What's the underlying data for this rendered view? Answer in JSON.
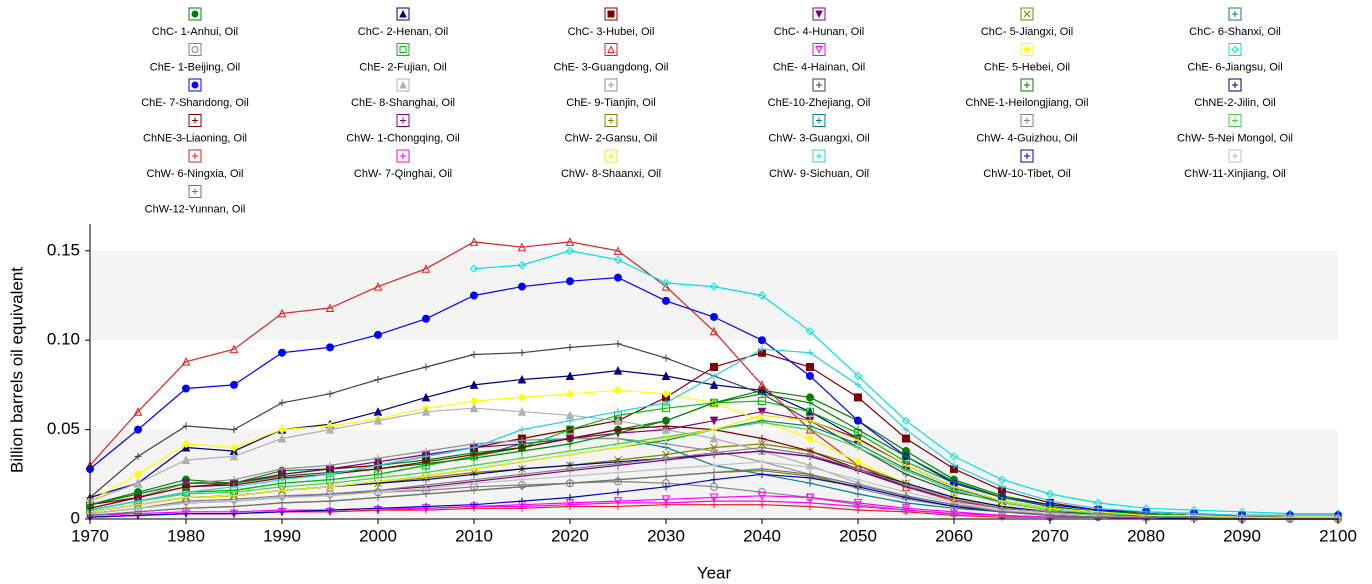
{
  "chart_data": {
    "type": "line",
    "x_label": "Year",
    "y_label": "Billion barrels oil equivalent",
    "x": [
      1970,
      1975,
      1980,
      1985,
      1990,
      1995,
      2000,
      2005,
      2010,
      2015,
      2020,
      2025,
      2030,
      2035,
      2040,
      2045,
      2050,
      2055,
      2060,
      2065,
      2070,
      2075,
      2080,
      2085,
      2090,
      2095,
      2100
    ],
    "xlim": [
      1970,
      2100
    ],
    "xticks": [
      1970,
      1980,
      1990,
      2000,
      2010,
      2020,
      2030,
      2040,
      2050,
      2060,
      2070,
      2080,
      2090,
      2100
    ],
    "ylim": [
      0,
      0.165
    ],
    "yticks": [
      0,
      0.05,
      {
        "value": 0.1,
        "label": "0.10"
      },
      0.15
    ],
    "grid": "bands",
    "series": [
      {
        "name": "ChC- 1-Anhui, Oil",
        "color": "#008000",
        "marker": "circle-filled",
        "values": [
          0.008,
          0.015,
          0.022,
          0.02,
          0.027,
          0.028,
          0.03,
          0.033,
          0.037,
          0.04,
          0.045,
          0.05,
          0.055,
          0.065,
          0.072,
          0.068,
          0.055,
          0.038,
          0.022,
          0.013,
          0.008,
          0.005,
          0.003,
          0.002,
          0.001,
          0.001,
          0.001
        ]
      },
      {
        "name": "ChC- 2-Henan, Oil",
        "color": "#000080",
        "marker": "triangle-filled",
        "values": [
          0.012,
          0.02,
          0.04,
          0.038,
          0.05,
          0.053,
          0.06,
          0.068,
          0.075,
          0.078,
          0.08,
          0.083,
          0.08,
          0.075,
          0.072,
          0.06,
          0.045,
          0.03,
          0.018,
          0.01,
          0.006,
          0.004,
          0.003,
          0.002,
          0.001,
          0.001,
          0.001
        ]
      },
      {
        "name": "ChC- 3-Hubei, Oil",
        "color": "#800000",
        "marker": "square-filled",
        "values": [
          0.008,
          0.012,
          0.018,
          0.02,
          0.025,
          0.028,
          0.03,
          0.035,
          0.04,
          0.045,
          0.05,
          0.055,
          0.068,
          0.085,
          0.093,
          0.085,
          0.068,
          0.045,
          0.028,
          0.016,
          0.009,
          0.005,
          0.003,
          0.002,
          0.002,
          0.001,
          0.001
        ]
      },
      {
        "name": "ChC- 4-Hunan, Oil",
        "color": "#800080",
        "marker": "invtriangle-filled",
        "values": [
          0.006,
          0.012,
          0.02,
          0.02,
          0.025,
          0.028,
          0.032,
          0.036,
          0.04,
          0.042,
          0.045,
          0.048,
          0.05,
          0.055,
          0.06,
          0.055,
          0.045,
          0.03,
          0.018,
          0.01,
          0.006,
          0.004,
          0.002,
          0.002,
          0.001,
          0.001,
          0.001
        ]
      },
      {
        "name": "ChC- 5-Jiangxi, Oil",
        "color": "#808000",
        "marker": "cross",
        "values": [
          0.004,
          0.008,
          0.012,
          0.013,
          0.016,
          0.018,
          0.02,
          0.023,
          0.026,
          0.028,
          0.03,
          0.033,
          0.036,
          0.04,
          0.042,
          0.038,
          0.03,
          0.02,
          0.012,
          0.007,
          0.004,
          0.003,
          0.002,
          0.001,
          0.001,
          0.001,
          0.001
        ]
      },
      {
        "name": "ChC- 6-Shanxi, Oil",
        "color": "#008080",
        "marker": "plus",
        "values": [
          0.005,
          0.01,
          0.015,
          0.016,
          0.02,
          0.022,
          0.025,
          0.03,
          0.035,
          0.042,
          0.045,
          0.045,
          0.04,
          0.03,
          0.025,
          0.02,
          0.014,
          0.009,
          0.006,
          0.004,
          0.003,
          0.002,
          0.001,
          0.001,
          0.001,
          0.001,
          0.001
        ]
      },
      {
        "name": "ChE- 1-Beijing, Oil",
        "color": "#808080",
        "marker": "circle-open",
        "values": [
          0.003,
          0.006,
          0.01,
          0.011,
          0.013,
          0.014,
          0.015,
          0.016,
          0.018,
          0.019,
          0.02,
          0.021,
          0.02,
          0.018,
          0.015,
          0.012,
          0.008,
          0.005,
          0.003,
          0.002,
          0.001,
          0.001,
          0.001,
          0.001,
          0,
          0,
          0
        ]
      },
      {
        "name": "ChE- 2-Fujian, Oil",
        "color": "#00c000",
        "marker": "square-open",
        "values": [
          0.005,
          0.01,
          0.015,
          0.016,
          0.02,
          0.022,
          0.025,
          0.03,
          0.035,
          0.04,
          0.05,
          0.058,
          0.062,
          0.065,
          0.066,
          0.06,
          0.048,
          0.032,
          0.02,
          0.012,
          0.007,
          0.004,
          0.003,
          0.002,
          0.001,
          0.001,
          0.001
        ]
      },
      {
        "name": "ChE- 3-Guangdong, Oil",
        "color": "#e02020",
        "marker": "triangle-open",
        "values": [
          0.03,
          0.06,
          0.088,
          0.095,
          0.115,
          0.118,
          0.13,
          0.14,
          0.155,
          0.152,
          0.155,
          0.15,
          0.13,
          0.105,
          0.075,
          0.05,
          0.03,
          0.018,
          0.01,
          0.006,
          0.004,
          0.003,
          0.002,
          0.002,
          0.001,
          0.001,
          0.001
        ]
      },
      {
        "name": "ChE- 4-Hainan, Oil",
        "color": "#ff00ff",
        "marker": "invtriangle-open",
        "values": [
          0.001,
          0.002,
          0.003,
          0.003,
          0.004,
          0.004,
          0.005,
          0.006,
          0.007,
          0.008,
          0.009,
          0.01,
          0.011,
          0.012,
          0.013,
          0.012,
          0.009,
          0.006,
          0.004,
          0.002,
          0.001,
          0.001,
          0.001,
          0,
          0,
          0,
          0
        ]
      },
      {
        "name": "ChE- 5-Hebei, Oil",
        "color": "#ffff00",
        "marker": "diamond-filled",
        "values": [
          0.01,
          0.025,
          0.042,
          0.04,
          0.05,
          0.052,
          0.056,
          0.062,
          0.066,
          0.068,
          0.07,
          0.072,
          0.07,
          0.065,
          0.055,
          0.045,
          0.032,
          0.02,
          0.012,
          0.007,
          0.004,
          0.003,
          0.002,
          0.001,
          0.001,
          0.001,
          0.001
        ]
      },
      {
        "name": "ChE- 6-Jiangsu, Oil",
        "color": "#00e0e0",
        "marker": "diamond-open",
        "values": [
          null,
          null,
          null,
          null,
          null,
          null,
          null,
          null,
          0.14,
          0.142,
          0.15,
          0.145,
          0.132,
          0.13,
          0.125,
          0.105,
          0.08,
          0.055,
          0.035,
          0.022,
          0.014,
          0.009,
          0.006,
          0.005,
          0.004,
          0.003,
          0.003
        ]
      },
      {
        "name": "ChE- 7-Shandong, Oil",
        "color": "#0000ff",
        "marker": "circle-filled",
        "values": [
          0.028,
          0.05,
          0.073,
          0.075,
          0.093,
          0.096,
          0.103,
          0.112,
          0.125,
          0.13,
          0.133,
          0.135,
          0.122,
          0.113,
          0.1,
          0.08,
          0.055,
          0.035,
          0.02,
          0.012,
          0.008,
          0.005,
          0.004,
          0.003,
          0.002,
          0.002,
          0.002
        ]
      },
      {
        "name": "ChE- 8-Shanghai, Oil",
        "color": "#b0b0b0",
        "marker": "triangle-filled",
        "values": [
          0.01,
          0.02,
          0.033,
          0.035,
          0.045,
          0.05,
          0.055,
          0.06,
          0.062,
          0.06,
          0.058,
          0.055,
          0.05,
          0.045,
          0.038,
          0.03,
          0.02,
          0.013,
          0.008,
          0.005,
          0.003,
          0.002,
          0.001,
          0.001,
          0.001,
          0.001,
          0.001
        ]
      },
      {
        "name": "ChE- 9-Tianjin, Oil",
        "color": "#909090",
        "marker": "plus",
        "values": [
          0.006,
          0.012,
          0.02,
          0.022,
          0.028,
          0.03,
          0.034,
          0.038,
          0.042,
          0.044,
          0.045,
          0.045,
          0.042,
          0.038,
          0.032,
          0.025,
          0.017,
          0.011,
          0.007,
          0.004,
          0.003,
          0.002,
          0.001,
          0.001,
          0.001,
          0,
          0
        ]
      },
      {
        "name": "ChE-10-Zhejiang, Oil",
        "color": "#404040",
        "marker": "plus",
        "values": [
          0.012,
          0.035,
          0.052,
          0.05,
          0.065,
          0.07,
          0.078,
          0.085,
          0.092,
          0.093,
          0.096,
          0.098,
          0.09,
          0.08,
          0.07,
          0.055,
          0.04,
          0.025,
          0.015,
          0.01,
          0.006,
          0.004,
          0.003,
          0.002,
          0.002,
          0.001,
          0.001
        ]
      },
      {
        "name": "ChNE-1-Heilongjiang, Oil",
        "color": "#008000",
        "marker": "plus",
        "values": [
          0.008,
          0.014,
          0.02,
          0.02,
          0.024,
          0.026,
          0.028,
          0.031,
          0.034,
          0.038,
          0.042,
          0.048,
          0.055,
          0.065,
          0.07,
          0.065,
          0.05,
          0.035,
          0.021,
          0.012,
          0.007,
          0.004,
          0.003,
          0.002,
          0.001,
          0.001,
          0.001
        ]
      },
      {
        "name": "ChNE-2-Jilin, Oil",
        "color": "#000080",
        "marker": "plus",
        "values": [
          0.004,
          0.008,
          0.012,
          0.013,
          0.016,
          0.018,
          0.02,
          0.022,
          0.025,
          0.028,
          0.03,
          0.032,
          0.034,
          0.036,
          0.038,
          0.035,
          0.028,
          0.02,
          0.012,
          0.007,
          0.004,
          0.003,
          0.002,
          0.001,
          0.001,
          0.001,
          0.001
        ]
      },
      {
        "name": "ChNE-3-Liaoning, Oil",
        "color": "#800000",
        "marker": "plus",
        "values": [
          0.006,
          0.012,
          0.018,
          0.019,
          0.023,
          0.025,
          0.028,
          0.032,
          0.036,
          0.04,
          0.045,
          0.05,
          0.052,
          0.05,
          0.045,
          0.038,
          0.028,
          0.018,
          0.011,
          0.006,
          0.004,
          0.002,
          0.002,
          0.001,
          0.001,
          0.001,
          0.001
        ]
      },
      {
        "name": "ChW- 1-Chongqing, Oil",
        "color": "#800080",
        "marker": "plus",
        "values": [
          0.003,
          0.006,
          0.009,
          0.01,
          0.012,
          0.014,
          0.016,
          0.018,
          0.021,
          0.024,
          0.027,
          0.03,
          0.033,
          0.036,
          0.038,
          0.035,
          0.027,
          0.018,
          0.011,
          0.006,
          0.004,
          0.002,
          0.001,
          0.001,
          0.001,
          0,
          0
        ]
      },
      {
        "name": "ChW- 2-Gansu, Oil",
        "color": "#808000",
        "marker": "plus",
        "values": [
          0.002,
          0.004,
          0.006,
          0.007,
          0.009,
          0.01,
          0.012,
          0.014,
          0.016,
          0.018,
          0.02,
          0.022,
          0.024,
          0.026,
          0.027,
          0.024,
          0.018,
          0.012,
          0.007,
          0.004,
          0.002,
          0.001,
          0.001,
          0.001,
          0,
          0,
          0
        ]
      },
      {
        "name": "ChW- 3-Guangxi, Oil",
        "color": "#008080",
        "marker": "plus",
        "values": [
          0.004,
          0.008,
          0.012,
          0.013,
          0.016,
          0.018,
          0.021,
          0.024,
          0.028,
          0.032,
          0.036,
          0.04,
          0.044,
          0.05,
          0.055,
          0.052,
          0.042,
          0.028,
          0.017,
          0.01,
          0.006,
          0.004,
          0.002,
          0.002,
          0.001,
          0.001,
          0.001
        ]
      },
      {
        "name": "ChW- 4-Guizhou, Oil",
        "color": "#808080",
        "marker": "plus",
        "values": [
          0.003,
          0.006,
          0.009,
          0.01,
          0.012,
          0.014,
          0.016,
          0.019,
          0.022,
          0.025,
          0.028,
          0.031,
          0.034,
          0.037,
          0.04,
          0.036,
          0.028,
          0.019,
          0.011,
          0.006,
          0.004,
          0.002,
          0.001,
          0.001,
          0.001,
          0,
          0
        ]
      },
      {
        "name": "ChW- 5-Nei Mongol, Oil",
        "color": "#40d040",
        "marker": "plus",
        "values": [
          0.005,
          0.01,
          0.014,
          0.015,
          0.018,
          0.02,
          0.023,
          0.026,
          0.03,
          0.034,
          0.038,
          0.042,
          0.046,
          0.05,
          0.054,
          0.05,
          0.04,
          0.027,
          0.016,
          0.009,
          0.005,
          0.003,
          0.002,
          0.001,
          0.001,
          0.001,
          0.001
        ]
      },
      {
        "name": "ChW- 6-Ningxia, Oil",
        "color": "#e02020",
        "marker": "plus",
        "values": [
          0.001,
          0.002,
          0.003,
          0.003,
          0.004,
          0.004,
          0.005,
          0.005,
          0.006,
          0.006,
          0.007,
          0.007,
          0.008,
          0.008,
          0.008,
          0.007,
          0.005,
          0.004,
          0.002,
          0.001,
          0.001,
          0.001,
          0,
          0,
          0,
          0,
          0
        ]
      },
      {
        "name": "ChW- 7-Qinghai, Oil",
        "color": "#ff00ff",
        "marker": "plus",
        "values": [
          0.002,
          0.003,
          0.004,
          0.004,
          0.005,
          0.005,
          0.006,
          0.006,
          0.007,
          0.007,
          0.008,
          0.009,
          0.009,
          0.01,
          0.01,
          0.009,
          0.007,
          0.005,
          0.003,
          0.002,
          0.001,
          0.001,
          0,
          0,
          0,
          0,
          0
        ]
      },
      {
        "name": "ChW- 8-Shaanxi, Oil",
        "color": "#f0f000",
        "marker": "plus",
        "values": [
          0.004,
          0.008,
          0.012,
          0.013,
          0.016,
          0.018,
          0.021,
          0.024,
          0.028,
          0.032,
          0.036,
          0.04,
          0.045,
          0.05,
          0.058,
          0.055,
          0.044,
          0.03,
          0.018,
          0.01,
          0.006,
          0.004,
          0.002,
          0.002,
          0.001,
          0.001,
          0.001
        ]
      },
      {
        "name": "ChW- 9-Sichuan, Oil",
        "color": "#20d0e0",
        "marker": "plus",
        "values": [
          0.005,
          0.01,
          0.015,
          0.018,
          0.022,
          0.025,
          0.03,
          0.035,
          0.04,
          0.05,
          0.055,
          0.06,
          0.065,
          0.08,
          0.095,
          0.093,
          0.075,
          0.05,
          0.03,
          0.018,
          0.01,
          0.006,
          0.004,
          0.003,
          0.002,
          0.002,
          0.002
        ]
      },
      {
        "name": "ChW-10-Tibet, Oil",
        "color": "#0000c0",
        "marker": "plus",
        "values": [
          0.001,
          0.002,
          0.003,
          0.003,
          0.004,
          0.005,
          0.006,
          0.007,
          0.008,
          0.01,
          0.012,
          0.015,
          0.018,
          0.022,
          0.025,
          0.023,
          0.018,
          0.012,
          0.007,
          0.004,
          0.002,
          0.001,
          0.001,
          0,
          0,
          0,
          0
        ]
      },
      {
        "name": "ChW-11-Xinjiang, Oil",
        "color": "#c0c0c0",
        "marker": "plus",
        "values": [
          0.003,
          0.006,
          0.009,
          0.01,
          0.012,
          0.013,
          0.015,
          0.017,
          0.02,
          0.022,
          0.024,
          0.026,
          0.028,
          0.03,
          0.032,
          0.029,
          0.022,
          0.015,
          0.009,
          0.005,
          0.003,
          0.002,
          0.001,
          0.001,
          0.001,
          0,
          0
        ]
      },
      {
        "name": "ChW-12-Yunnan, Oil",
        "color": "#707070",
        "marker": "plus",
        "values": [
          0.002,
          0.004,
          0.006,
          0.007,
          0.009,
          0.01,
          0.012,
          0.014,
          0.016,
          0.018,
          0.02,
          0.022,
          0.024,
          0.026,
          0.028,
          0.025,
          0.019,
          0.013,
          0.008,
          0.004,
          0.002,
          0.001,
          0.001,
          0.001,
          0,
          0,
          0
        ]
      }
    ]
  }
}
